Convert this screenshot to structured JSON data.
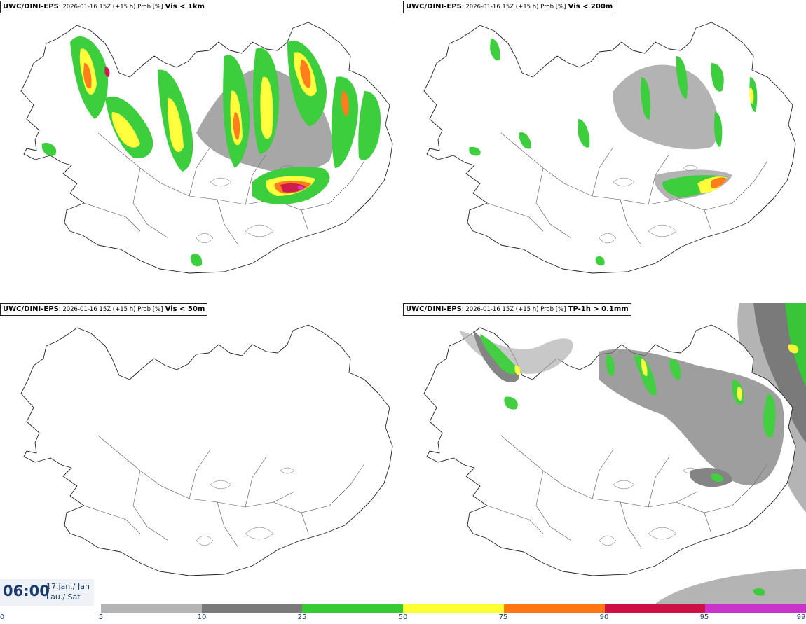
{
  "panels": [
    {
      "model": "UWC/DINI-EPS",
      "meta": ": 2026-01-16 15Z (+15 h) Prob [%]",
      "field": "Vis < 1km"
    },
    {
      "model": "UWC/DINI-EPS",
      "meta": ": 2026-01-16 15Z (+15 h) Prob [%]",
      "field": "Vis < 200m"
    },
    {
      "model": "UWC/DINI-EPS",
      "meta": ": 2026-01-16 15Z (+15 h) Prob [%]",
      "field": "Vis < 50m"
    },
    {
      "model": "UWC/DINI-EPS",
      "meta": ": 2026-01-16 15Z (+15 h) Prob [%]",
      "field": "TP-1h > 0.1mm"
    }
  ],
  "clock": {
    "time": "06:00",
    "date_line1": "17.jan./ Jan",
    "date_line2": "Lau./ Sat"
  },
  "legend": {
    "ticks": [
      "0",
      "5",
      "10",
      "25",
      "50",
      "75",
      "90",
      "95",
      "99"
    ],
    "colors": [
      "#b4b4b4",
      "#7a7a7a",
      "#33cc33",
      "#ffff33",
      "#ff7711",
      "#cc1144",
      "#cc33cc"
    ]
  }
}
